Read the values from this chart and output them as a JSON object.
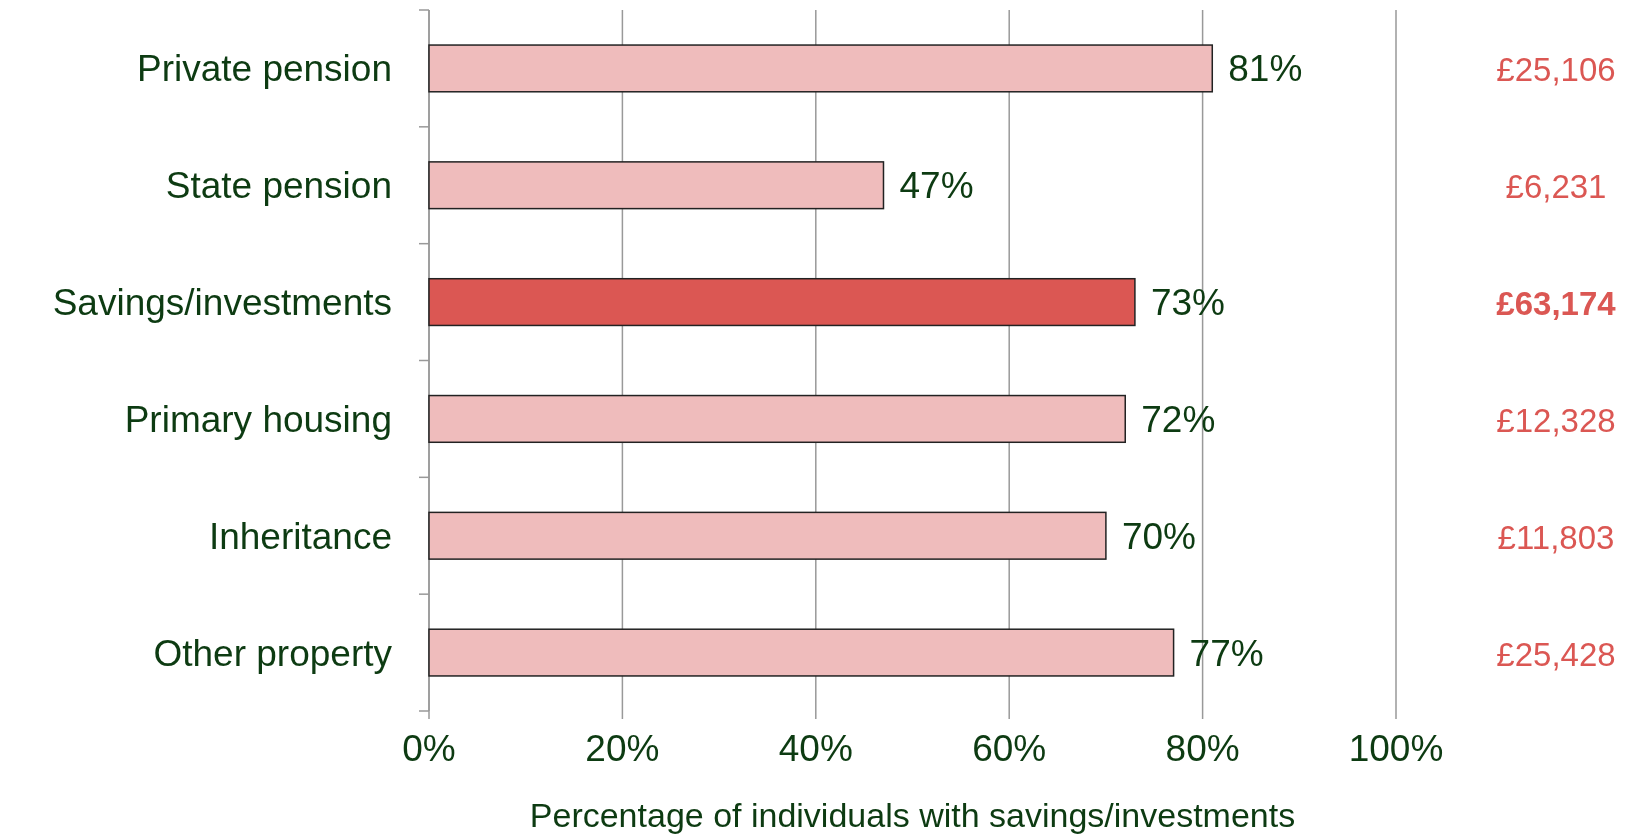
{
  "chart_data": {
    "type": "bar",
    "orientation": "horizontal",
    "categories": [
      "Private pension",
      "State pension",
      "Savings/investments",
      "Primary housing",
      "Inheritance",
      "Other property"
    ],
    "values": [
      81,
      47,
      73,
      72,
      70,
      77
    ],
    "colors": [
      "#efbcbc",
      "#efbcbc",
      "#db5753",
      "#efbcbc",
      "#efbcbc",
      "#efbcbc"
    ],
    "value_labels": [
      "81%",
      "47%",
      "73%",
      "72%",
      "70%",
      "77%"
    ],
    "xlim": [
      0,
      100
    ],
    "xticks": [
      {
        "value": 0,
        "label": "0%"
      },
      {
        "value": 20,
        "label": "20%"
      },
      {
        "value": 40,
        "label": "40%"
      },
      {
        "value": 60,
        "label": "60%"
      },
      {
        "value": 80,
        "label": "80%"
      },
      {
        "value": 100,
        "label": "100%"
      }
    ],
    "xlabel": "Percentage of individuals with savings/investments",
    "grid": "x",
    "annotations": [
      "£25,106",
      "£6,231",
      "£63,174",
      "£12,328",
      "£11,803",
      "£25,428"
    ]
  }
}
